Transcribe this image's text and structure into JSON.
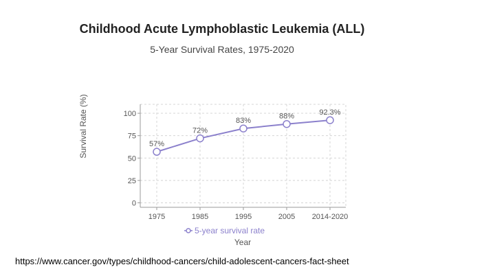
{
  "page": {
    "title": "Childhood Acute Lymphoblastic Leukemia (ALL)",
    "subtitle": "5-Year Survival Rates, 1975-2020",
    "source": "https://www.cancer.gov/types/childhood-cancers/child-adolescent-cancers-fact-sheet"
  },
  "colors": {
    "series": "#8b80cc",
    "grid": "#d4d4d4",
    "axis": "#999999"
  },
  "chart_data": {
    "type": "line",
    "categories": [
      "1975",
      "1985",
      "1995",
      "2005",
      "2014-2020"
    ],
    "series": [
      {
        "name": "5-year survival rate",
        "values": [
          57,
          72,
          83,
          88,
          92.3
        ],
        "labels": [
          "57%",
          "72%",
          "83%",
          "88%",
          "92.3%"
        ]
      }
    ],
    "xlabel": "Year",
    "ylabel": "Survival Rate (%)",
    "yticks": [
      0,
      25,
      50,
      75,
      100
    ],
    "ylim": [
      -5,
      110
    ],
    "grid": true,
    "legend": "bottom"
  }
}
